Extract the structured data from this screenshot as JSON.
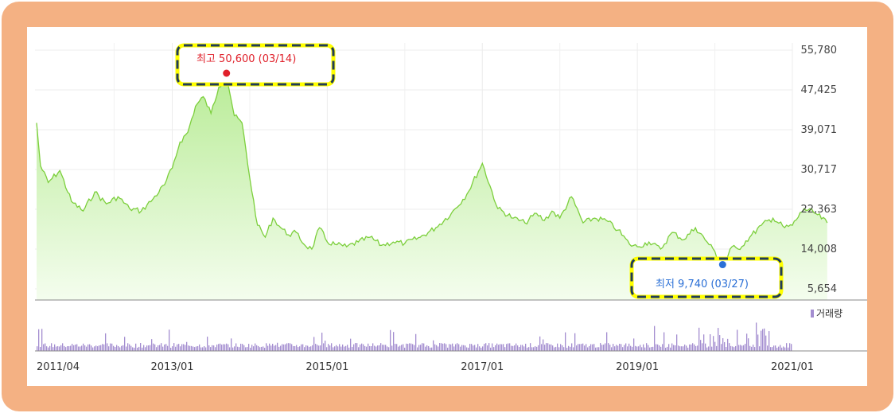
{
  "chart_data": [
    {
      "type": "area",
      "x_range": [
        "2011/04",
        "2021/01"
      ],
      "ylim": [
        5654,
        55780
      ],
      "y_ticks": [
        "55,780",
        "47,425",
        "39,071",
        "30,717",
        "22,363",
        "14,008",
        "5,654"
      ],
      "x_ticks": [
        "2011/04",
        "2013/01",
        "2015/01",
        "2017/01",
        "2019/01",
        "2021/01"
      ],
      "colors": {
        "line": "#7ccf3c",
        "fill_top": "#b9ec97",
        "fill_bottom": "#f4fdee"
      },
      "series": [
        {
          "x": [
            2011.25,
            2011.3,
            2011.4,
            2011.55,
            2011.7,
            2011.85,
            2012.0,
            2012.15,
            2012.3,
            2012.45,
            2012.6,
            2012.75,
            2012.9,
            2013.0,
            2013.1,
            2013.2,
            2013.3,
            2013.4,
            2013.5,
            2013.6,
            2013.7,
            2013.8,
            2013.9,
            2014.0,
            2014.1,
            2014.2,
            2014.3,
            2014.4,
            2014.5,
            2014.6,
            2014.7,
            2014.8,
            2014.9,
            2015.0,
            2015.1,
            2015.25,
            2015.4,
            2015.55,
            2015.7,
            2015.85,
            2016.0,
            2016.2,
            2016.4,
            2016.6,
            2016.8,
            2017.0,
            2017.2,
            2017.4,
            2017.55,
            2017.7,
            2017.8,
            2017.9,
            2018.0,
            2018.15,
            2018.3,
            2018.45,
            2018.6,
            2018.75,
            2018.9,
            2019.0,
            2019.15,
            2019.3,
            2019.45,
            2019.6,
            2019.75,
            2019.9,
            2020.0,
            2020.1,
            2020.22,
            2020.3,
            2020.45,
            2020.6,
            2020.75,
            2020.9,
            2021.0,
            2021.15,
            2021.3,
            2021.45
          ],
          "y": [
            40500,
            31500,
            28000,
            30500,
            24000,
            22000,
            26000,
            23500,
            25000,
            22500,
            22000,
            24500,
            27500,
            31000,
            36500,
            38500,
            44000,
            46000,
            42500,
            48000,
            50600,
            42000,
            40500,
            29000,
            19000,
            16500,
            20500,
            18500,
            17000,
            17500,
            15000,
            14000,
            18500,
            15500,
            15000,
            14500,
            15500,
            16500,
            14800,
            15500,
            15200,
            16500,
            18500,
            21500,
            25500,
            32000,
            22500,
            20500,
            19500,
            21500,
            20000,
            22000,
            20500,
            25000,
            19500,
            20500,
            20000,
            18000,
            15000,
            14500,
            15500,
            14000,
            17500,
            16000,
            18500,
            15500,
            13500,
            9740,
            14500,
            14000,
            16500,
            19000,
            20500,
            18500,
            19000,
            22500,
            21500,
            19500
          ]
        }
      ],
      "high": {
        "label": "최고 50,600 (03/14)",
        "x": 2013.7,
        "value": 50600
      },
      "low": {
        "label": "최저 9,740 (03/27)",
        "x": 2020.1,
        "value": 9740
      }
    },
    {
      "type": "bar",
      "legend": "거래량",
      "colors": {
        "bar": "#a38dd0"
      }
    }
  ]
}
